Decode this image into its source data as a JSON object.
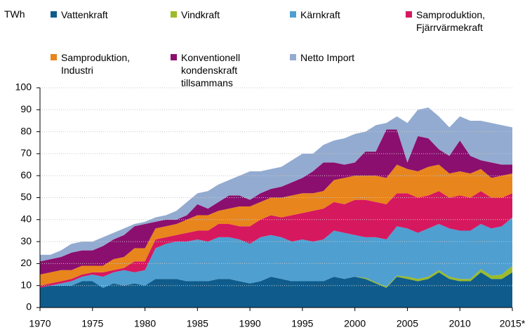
{
  "chart_data": {
    "type": "stacked_area",
    "y_label": "TWh",
    "x": [
      1970,
      1971,
      1972,
      1973,
      1974,
      1975,
      1976,
      1977,
      1978,
      1979,
      1980,
      1981,
      1982,
      1983,
      1984,
      1985,
      1986,
      1987,
      1988,
      1989,
      1990,
      1991,
      1992,
      1993,
      1994,
      1995,
      1996,
      1997,
      1998,
      1999,
      2000,
      2001,
      2002,
      2003,
      2004,
      2005,
      2006,
      2007,
      2008,
      2009,
      2010,
      2011,
      2012,
      2013,
      2014,
      2015
    ],
    "xlim": [
      1970,
      2015
    ],
    "xticks": [
      1970,
      1975,
      1980,
      1985,
      1990,
      1995,
      2000,
      2005,
      2010,
      {
        "value": 2015,
        "label": "2015*"
      }
    ],
    "ylim": [
      0,
      100
    ],
    "yticks": [
      0,
      10,
      20,
      30,
      40,
      50,
      60,
      70,
      80,
      90,
      100
    ],
    "grid": true,
    "series": [
      {
        "name": "Vattenkraft",
        "color": "#0f5c8c",
        "values": [
          9,
          10,
          10,
          10,
          12,
          12,
          9,
          11,
          10,
          11,
          10,
          13,
          13,
          13,
          12,
          12,
          12,
          13,
          13,
          12,
          11,
          12,
          14,
          13,
          12,
          12,
          12,
          12,
          14,
          13,
          14,
          13,
          11,
          9,
          14,
          13,
          12,
          13,
          16,
          13,
          12,
          12,
          16,
          13,
          13,
          16
        ]
      },
      {
        "name": "Vindkraft",
        "color": "#9bbb2b",
        "values": [
          0,
          0,
          0,
          0,
          0,
          0,
          0,
          0,
          0,
          0,
          0,
          0,
          0,
          0,
          0,
          0,
          0,
          0,
          0,
          0,
          0,
          0,
          0,
          0,
          0,
          0,
          0,
          0,
          0,
          0,
          0,
          0.5,
          0.5,
          0.5,
          0.5,
          1,
          1,
          1,
          1,
          1,
          1,
          1,
          1.5,
          1.5,
          2,
          3
        ]
      },
      {
        "name": "Kärnkraft",
        "color": "#4f9fd0",
        "values": [
          0,
          0,
          1,
          2,
          2,
          3,
          5,
          5,
          7,
          5,
          7,
          14,
          16,
          17,
          18,
          19,
          18,
          19,
          19,
          19,
          18,
          20,
          19,
          19,
          18,
          19,
          18,
          19,
          21,
          21,
          19,
          18.5,
          20.5,
          21.5,
          22.5,
          22,
          21,
          22,
          21,
          22,
          22,
          22,
          20.5,
          21.5,
          22,
          22
        ]
      },
      {
        "name": "Samproduktion, Fjärrvärmekraft",
        "color": "#d6185e",
        "values": [
          1,
          1,
          1,
          1,
          1,
          1,
          2,
          1,
          1,
          5,
          4,
          4,
          3,
          3,
          4,
          4,
          5,
          6,
          6,
          6,
          8,
          8,
          9,
          9,
          12,
          12,
          14,
          14,
          13,
          13,
          16,
          17,
          16,
          16,
          15,
          16,
          16,
          15,
          15,
          14,
          16,
          15,
          15,
          14,
          13,
          11
        ]
      },
      {
        "name": "Samproduktion, Industri",
        "color": "#e8851c",
        "values": [
          5,
          5,
          5,
          4,
          4,
          3,
          3,
          5,
          5,
          6,
          6,
          5,
          5,
          5,
          6,
          7,
          7,
          6,
          7,
          9,
          9,
          8,
          8,
          9,
          9,
          9,
          8,
          8,
          10,
          12,
          11,
          11,
          12,
          12,
          13,
          11,
          12,
          13,
          12,
          11,
          11,
          11,
          10,
          9,
          10,
          9
        ]
      },
      {
        "name": "Konventionell kondenskraft tillsammans",
        "color": "#8b0f6f",
        "values": [
          6,
          6,
          6,
          8,
          7,
          7,
          9,
          9,
          10,
          10,
          11,
          3,
          3,
          2,
          2,
          5,
          3,
          4,
          6,
          5,
          3,
          4,
          4,
          5,
          6,
          7,
          10,
          13,
          8,
          6,
          6,
          11,
          11,
          22,
          16,
          3,
          16,
          13,
          7,
          8,
          14,
          8,
          4,
          7,
          5,
          4
        ]
      },
      {
        "name": "Netto Import",
        "color": "#93abd0",
        "values": [
          3,
          2,
          3,
          4,
          4,
          4,
          4,
          3,
          3,
          1,
          1,
          2,
          2,
          4,
          6,
          5,
          8,
          8,
          7,
          9,
          13,
          10,
          9,
          9,
          10,
          11,
          8,
          8,
          10,
          12,
          13,
          9,
          12,
          3,
          6,
          18,
          12,
          14,
          15,
          13,
          11,
          16,
          18,
          18,
          18,
          17
        ]
      }
    ]
  }
}
